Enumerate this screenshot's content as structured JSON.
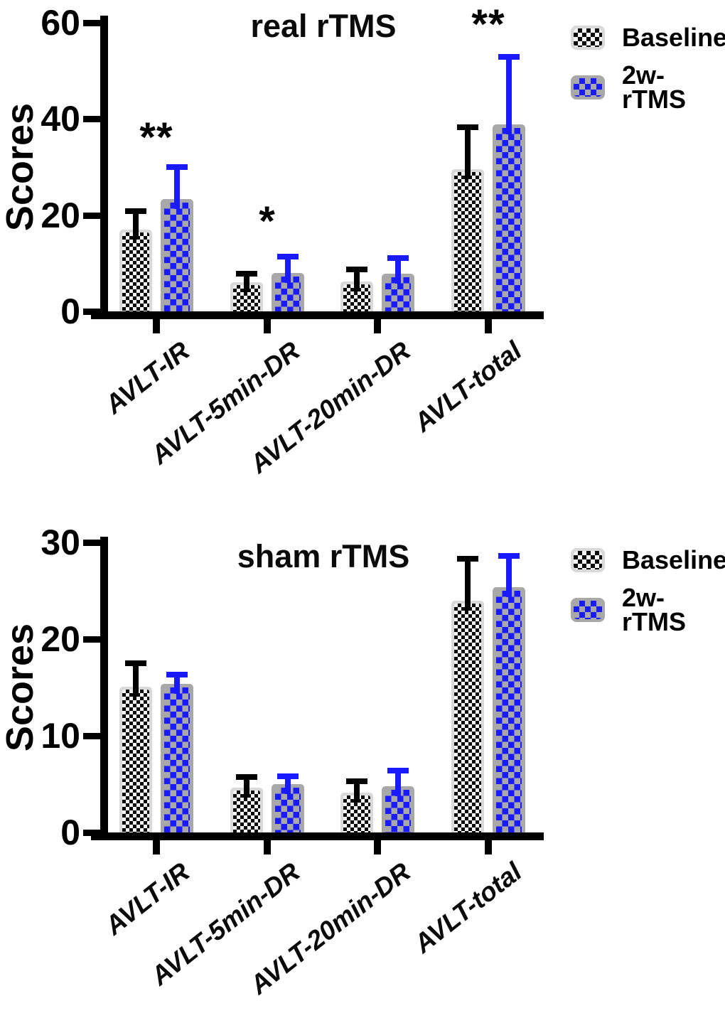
{
  "colors": {
    "baseline_border": "#d9d9d9",
    "baseline_check": "#0a0a0a",
    "baseline_bg": "#f4f4f4",
    "tms_border": "#a8a8a8",
    "tms_check": "#1a1aff",
    "error_baseline": "#000000",
    "error_tms": "#1a1aff",
    "axis": "#000000"
  },
  "legend": {
    "items": [
      {
        "label": "Baseline",
        "swatch": "black-checker-swatch"
      },
      {
        "label": "2w-rTMS",
        "swatch": "blue-checker-swatch"
      }
    ]
  },
  "chart_data": [
    {
      "type": "bar",
      "title": "real rTMS",
      "ylabel": "Scores",
      "ylim": [
        0,
        60
      ],
      "yticks": [
        0,
        20,
        40,
        60
      ],
      "grid": false,
      "legend_position": "top-right-outside",
      "categories": [
        "AVLT-IR",
        "AVLT-5min-DR",
        "AVLT-20min-DR",
        "AVLT-total"
      ],
      "series": [
        {
          "name": "Baseline",
          "values": [
            17.0,
            6.0,
            6.2,
            29.5
          ],
          "err_top": [
            21.5,
            8.4,
            9.3,
            38.9
          ]
        },
        {
          "name": "2w-rTMS",
          "values": [
            23.3,
            8.0,
            7.8,
            38.9
          ],
          "err_top": [
            30.6,
            12.0,
            11.7,
            53.5
          ]
        }
      ],
      "annotations": [
        {
          "text": "**",
          "category_index": 0
        },
        {
          "text": "*",
          "category_index": 1
        },
        {
          "text": "**",
          "category_index": 3
        }
      ]
    },
    {
      "type": "bar",
      "title": "sham rTMS",
      "ylabel": "Scores",
      "ylim": [
        0,
        30
      ],
      "yticks": [
        0,
        10,
        20,
        30
      ],
      "grid": false,
      "legend_position": "top-right-outside",
      "categories": [
        "AVLT-IR",
        "AVLT-5min-DR",
        "AVLT-20min-DR",
        "AVLT-total"
      ],
      "series": [
        {
          "name": "Baseline",
          "values": [
            15.1,
            4.6,
            4.1,
            24.0
          ],
          "err_top": [
            17.8,
            6.0,
            5.6,
            28.6
          ]
        },
        {
          "name": "2w-rTMS",
          "values": [
            15.4,
            5.0,
            4.8,
            25.4
          ],
          "err_top": [
            16.6,
            6.1,
            6.7,
            28.9
          ]
        }
      ],
      "annotations": []
    }
  ]
}
